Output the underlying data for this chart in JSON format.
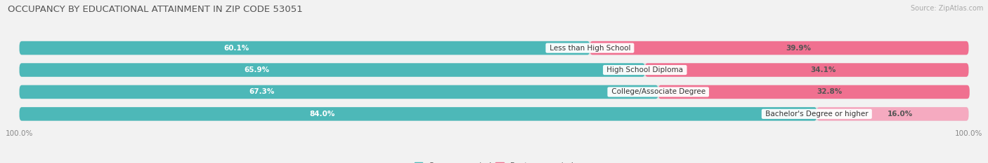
{
  "title": "OCCUPANCY BY EDUCATIONAL ATTAINMENT IN ZIP CODE 53051",
  "source": "Source: ZipAtlas.com",
  "categories": [
    "Less than High School",
    "High School Diploma",
    "College/Associate Degree",
    "Bachelor's Degree or higher"
  ],
  "owner_pct": [
    60.1,
    65.9,
    67.3,
    84.0
  ],
  "renter_pct": [
    39.9,
    34.1,
    32.8,
    16.0
  ],
  "owner_color": "#4db8b8",
  "renter_colors": [
    "#f07090",
    "#f07090",
    "#f07090",
    "#f5aac0"
  ],
  "bg_color": "#f2f2f2",
  "bar_bg_color": "#e2e2e2",
  "title_fontsize": 9.5,
  "label_fontsize": 7.5,
  "tick_fontsize": 7.5,
  "legend_fontsize": 8,
  "source_fontsize": 7
}
